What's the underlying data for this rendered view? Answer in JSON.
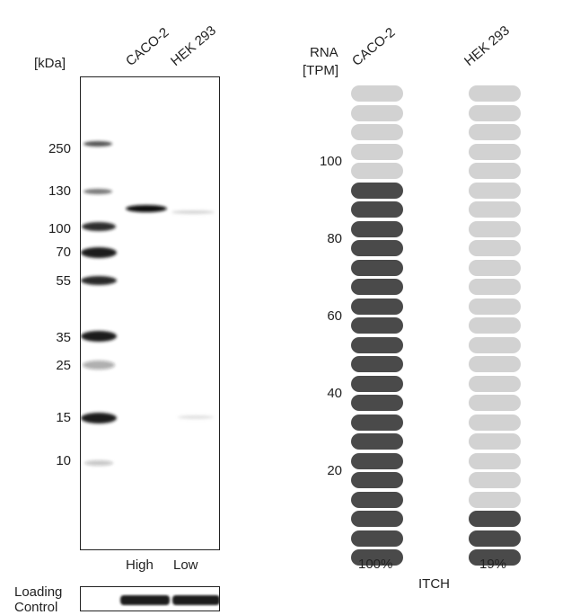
{
  "western_blot": {
    "unit_label": "[kDa]",
    "lanes": [
      "CACO-2",
      "HEK 293"
    ],
    "markers": [
      "250",
      "130",
      "100",
      "70",
      "55",
      "35",
      "25",
      "15",
      "10"
    ],
    "levels": [
      "High",
      "Low"
    ],
    "loading_control": [
      "Loading",
      "Control"
    ]
  },
  "rna": {
    "axis_label": [
      "RNA",
      "[TPM]"
    ],
    "columns": [
      "CACO-2",
      "HEK 293"
    ],
    "yticks": [
      "100",
      "80",
      "60",
      "40",
      "20"
    ],
    "percents": [
      "100%",
      "19%"
    ],
    "gene": "ITCH",
    "pills_per_column": 25,
    "dark_pills": [
      20,
      3
    ],
    "colors": {
      "dark": "#4a4a4a",
      "light": "#d2d2d2"
    }
  }
}
